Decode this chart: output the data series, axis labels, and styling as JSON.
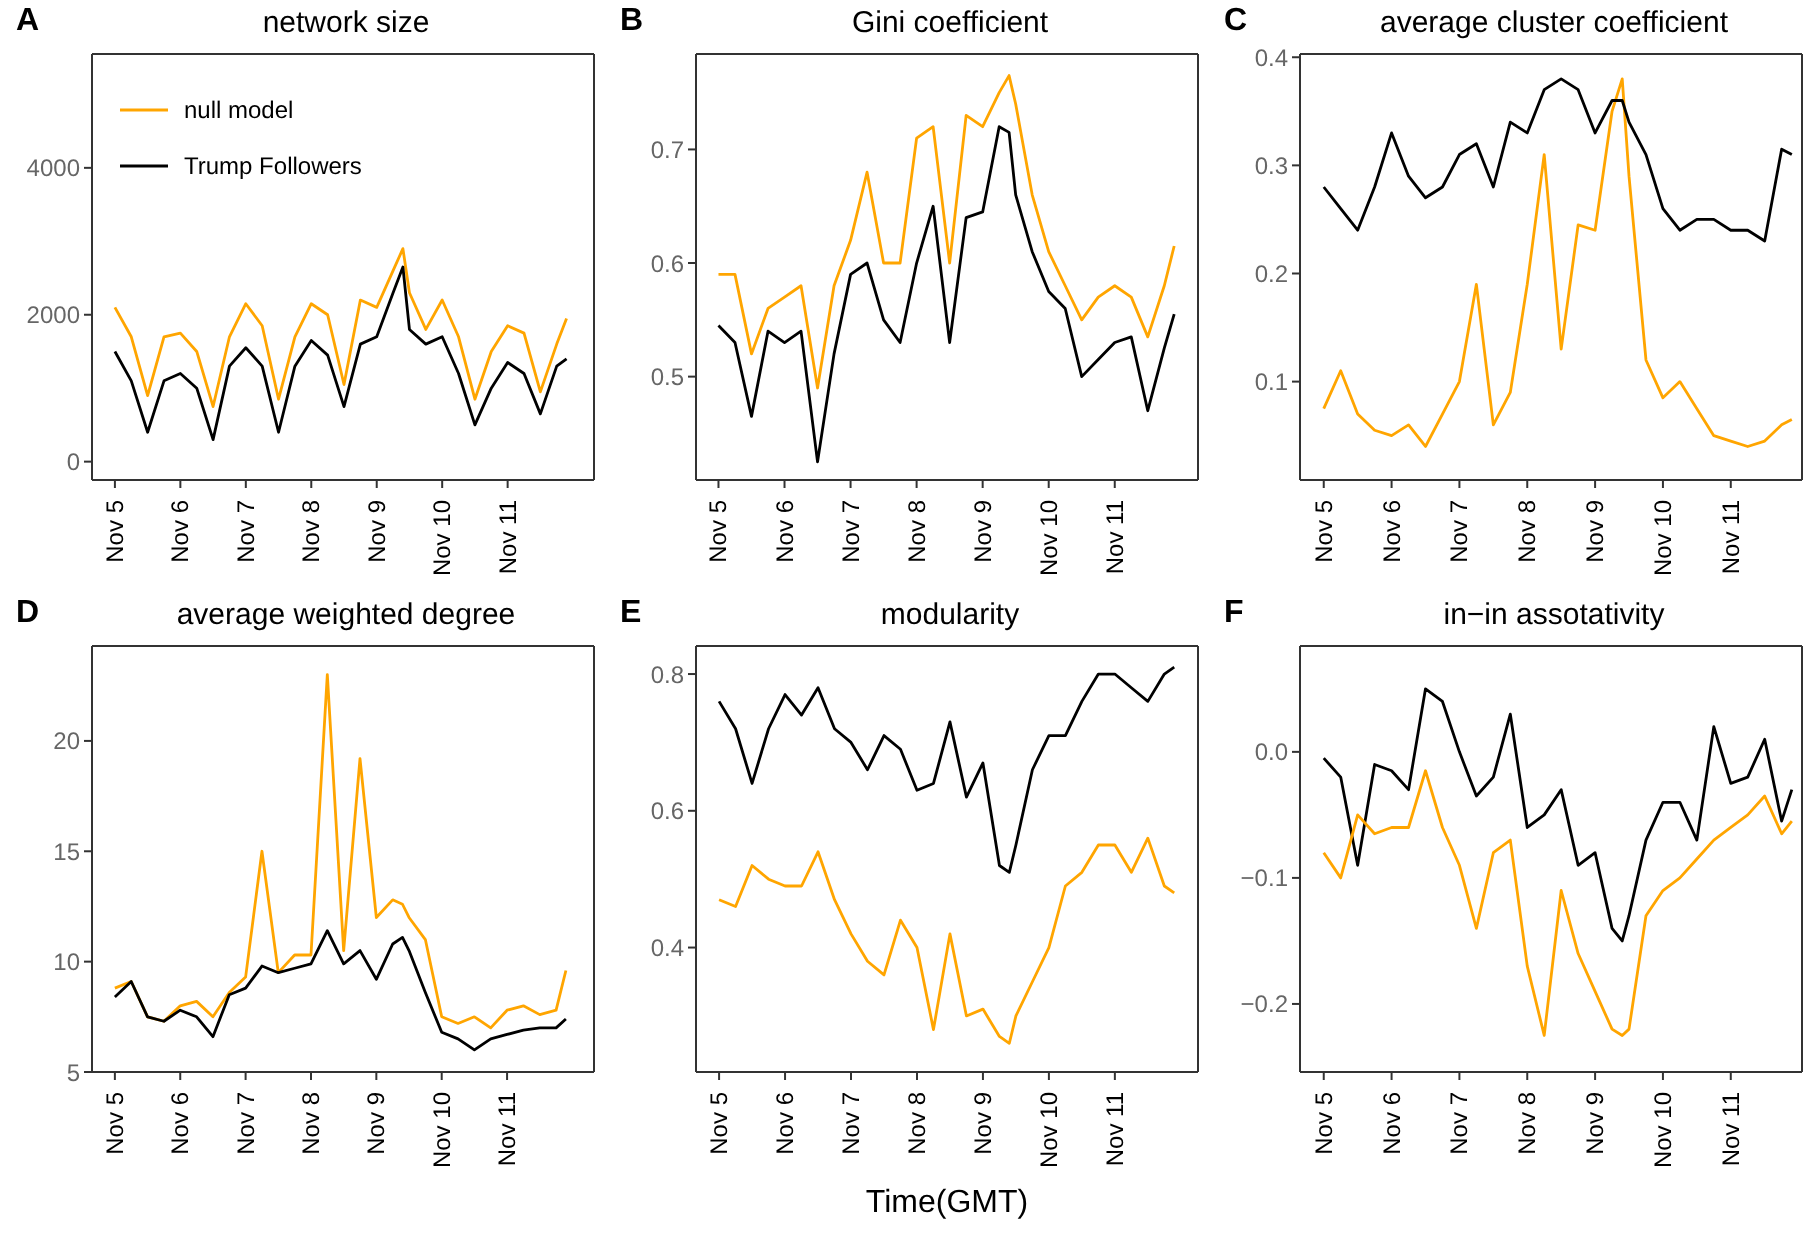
{
  "chart_data": [
    {
      "type": "line",
      "title": "network size",
      "annotations": [
        "A"
      ],
      "legend": "top left",
      "x": [
        "--11-05T00:00",
        "--11-05T06:00",
        "--11-05T12:00",
        "--11-05T18:00",
        "--11-06T00:00",
        "--11-06T06:00",
        "--11-06T12:00",
        "--11-06T18:00",
        "--11-07T00:00",
        "--11-07T06:00",
        "--11-07T12:00",
        "--11-07T18:00",
        "--11-08T00:00",
        "--11-08T06:00",
        "--11-08T12:00",
        "--11-08T18:00",
        "--11-09T00:00",
        "--11-09T06:00",
        "--11-09T09:36",
        "--11-09T12:00",
        "--11-09T18:00",
        "--11-10T00:00",
        "--11-10T06:00",
        "--11-10T12:00",
        "--11-10T18:00",
        "--11-11T00:00",
        "--11-11T06:00",
        "--11-11T12:00",
        "--11-11T18:00",
        "--11-11T21:36"
      ],
      "xlim": [
        "--11-04T15:36",
        "--11-12T07:40"
      ],
      "xticks": [
        {
          "value": "--11-05",
          "label": "Nov 5"
        },
        {
          "value": "--11-06",
          "label": "Nov 6"
        },
        {
          "value": "--11-07",
          "label": "Nov 7"
        },
        {
          "value": "--11-08",
          "label": "Nov 8"
        },
        {
          "value": "--11-09",
          "label": "Nov 9"
        },
        {
          "value": "--11-10",
          "label": "Nov 10"
        },
        {
          "value": "--11-11",
          "label": "Nov 11"
        }
      ],
      "ylim": [
        -250,
        5550
      ],
      "yticks": [
        0,
        2000,
        4000
      ],
      "series": [
        {
          "name": "null model",
          "color": "#ffa500",
          "values": [
            2100,
            1700,
            900,
            1700,
            1750,
            1500,
            750,
            1700,
            2150,
            1850,
            850,
            1700,
            2150,
            2000,
            1050,
            2200,
            2100,
            2600,
            2900,
            2300,
            1800,
            2200,
            1700,
            850,
            1500,
            1850,
            1750,
            950,
            1600,
            1950
          ]
        },
        {
          "name": "Trump Followers",
          "color": "#000000",
          "values": [
            1500,
            1100,
            400,
            1100,
            1200,
            1000,
            300,
            1300,
            1550,
            1300,
            400,
            1300,
            1650,
            1450,
            750,
            1600,
            1700,
            2300,
            2650,
            1800,
            1600,
            1700,
            1200,
            500,
            1000,
            1350,
            1200,
            650,
            1300,
            1400
          ]
        }
      ]
    },
    {
      "type": "line",
      "title": "Gini coefficient",
      "annotations": [
        "B"
      ],
      "x": [
        "--11-05T00:00",
        "--11-05T06:00",
        "--11-05T12:00",
        "--11-05T18:00",
        "--11-06T00:00",
        "--11-06T06:00",
        "--11-06T12:00",
        "--11-06T18:00",
        "--11-07T00:00",
        "--11-07T06:00",
        "--11-07T12:00",
        "--11-07T18:00",
        "--11-08T00:00",
        "--11-08T06:00",
        "--11-08T12:00",
        "--11-08T18:00",
        "--11-09T00:00",
        "--11-09T06:00",
        "--11-09T09:36",
        "--11-09T12:00",
        "--11-09T18:00",
        "--11-10T00:00",
        "--11-10T06:00",
        "--11-10T12:00",
        "--11-10T18:00",
        "--11-11T00:00",
        "--11-11T06:00",
        "--11-11T12:00",
        "--11-11T18:00",
        "--11-11T21:36"
      ],
      "xlim": [
        "--11-04T15:50",
        "--11-12T06:15"
      ],
      "xticks": [
        {
          "value": "--11-05",
          "label": "Nov 5"
        },
        {
          "value": "--11-06",
          "label": "Nov 6"
        },
        {
          "value": "--11-07",
          "label": "Nov 7"
        },
        {
          "value": "--11-08",
          "label": "Nov 8"
        },
        {
          "value": "--11-09",
          "label": "Nov 9"
        },
        {
          "value": "--11-10",
          "label": "Nov 10"
        },
        {
          "value": "--11-11",
          "label": "Nov 11"
        }
      ],
      "ylim": [
        0.409,
        0.784
      ],
      "yticks": [
        0.5,
        0.6,
        0.7
      ],
      "series": [
        {
          "color": "#ffa500",
          "values": [
            0.59,
            0.59,
            0.52,
            0.56,
            0.57,
            0.58,
            0.49,
            0.58,
            0.62,
            0.68,
            0.6,
            0.6,
            0.71,
            0.72,
            0.6,
            0.73,
            0.72,
            0.75,
            0.765,
            0.74,
            0.66,
            0.61,
            0.58,
            0.55,
            0.57,
            0.58,
            0.57,
            0.535,
            0.58,
            0.615
          ]
        },
        {
          "color": "#000000",
          "values": [
            0.545,
            0.53,
            0.465,
            0.54,
            0.53,
            0.54,
            0.425,
            0.52,
            0.59,
            0.6,
            0.55,
            0.53,
            0.6,
            0.65,
            0.53,
            0.64,
            0.645,
            0.72,
            0.715,
            0.66,
            0.61,
            0.575,
            0.56,
            0.5,
            0.515,
            0.53,
            0.535,
            0.47,
            0.525,
            0.555
          ]
        }
      ]
    },
    {
      "type": "line",
      "title": "average cluster coefficient",
      "annotations": [
        "C"
      ],
      "x": [
        "--11-05T00:00",
        "--11-05T06:00",
        "--11-05T12:00",
        "--11-05T18:00",
        "--11-06T00:00",
        "--11-06T06:00",
        "--11-06T12:00",
        "--11-06T18:00",
        "--11-07T00:00",
        "--11-07T06:00",
        "--11-07T12:00",
        "--11-07T18:00",
        "--11-08T00:00",
        "--11-08T06:00",
        "--11-08T12:00",
        "--11-08T18:00",
        "--11-09T00:00",
        "--11-09T06:00",
        "--11-09T09:36",
        "--11-09T12:00",
        "--11-09T18:00",
        "--11-10T00:00",
        "--11-10T06:00",
        "--11-10T12:00",
        "--11-10T18:00",
        "--11-11T00:00",
        "--11-11T06:00",
        "--11-11T12:00",
        "--11-11T18:00",
        "--11-11T21:36"
      ],
      "xlim": [
        "--11-04T15:36",
        "--11-12T01:12"
      ],
      "xticks": [
        {
          "value": "--11-05",
          "label": "Nov 5"
        },
        {
          "value": "--11-06",
          "label": "Nov 6"
        },
        {
          "value": "--11-07",
          "label": "Nov 7"
        },
        {
          "value": "--11-08",
          "label": "Nov 8"
        },
        {
          "value": "--11-09",
          "label": "Nov 9"
        },
        {
          "value": "--11-10",
          "label": "Nov 10"
        },
        {
          "value": "--11-11",
          "label": "Nov 11"
        }
      ],
      "ylim": [
        0.009,
        0.403
      ],
      "yticks": [
        0.1,
        0.2,
        0.3,
        0.4
      ],
      "series": [
        {
          "color": "#ffa500",
          "values": [
            0.075,
            0.11,
            0.07,
            0.055,
            0.05,
            0.06,
            0.04,
            0.07,
            0.1,
            0.19,
            0.06,
            0.09,
            0.19,
            0.31,
            0.13,
            0.245,
            0.24,
            0.35,
            0.38,
            0.29,
            0.12,
            0.085,
            0.1,
            0.075,
            0.05,
            0.045,
            0.04,
            0.045,
            0.06,
            0.065
          ]
        },
        {
          "color": "#000000",
          "values": [
            0.28,
            0.26,
            0.24,
            0.28,
            0.33,
            0.29,
            0.27,
            0.28,
            0.31,
            0.32,
            0.28,
            0.34,
            0.33,
            0.37,
            0.38,
            0.37,
            0.33,
            0.36,
            0.36,
            0.34,
            0.31,
            0.26,
            0.24,
            0.25,
            0.25,
            0.24,
            0.24,
            0.23,
            0.315,
            0.31
          ]
        }
      ]
    },
    {
      "type": "line",
      "title": "average weighted degree",
      "annotations": [
        "D"
      ],
      "x": [
        "--11-05T00:00",
        "--11-05T06:00",
        "--11-05T12:00",
        "--11-05T18:00",
        "--11-06T00:00",
        "--11-06T06:00",
        "--11-06T12:00",
        "--11-06T18:00",
        "--11-07T00:00",
        "--11-07T06:00",
        "--11-07T12:00",
        "--11-07T18:00",
        "--11-08T00:00",
        "--11-08T06:00",
        "--11-08T12:00",
        "--11-08T18:00",
        "--11-09T00:00",
        "--11-09T06:00",
        "--11-09T09:36",
        "--11-09T12:00",
        "--11-09T18:00",
        "--11-10T00:00",
        "--11-10T06:00",
        "--11-10T12:00",
        "--11-10T18:00",
        "--11-11T00:00",
        "--11-11T06:00",
        "--11-11T12:00",
        "--11-11T18:00",
        "--11-11T21:36"
      ],
      "xlim": [
        "--11-04T15:36",
        "--11-12T07:55"
      ],
      "xticks": [
        {
          "value": "--11-05",
          "label": "Nov 5"
        },
        {
          "value": "--11-06",
          "label": "Nov 6"
        },
        {
          "value": "--11-07",
          "label": "Nov 7"
        },
        {
          "value": "--11-08",
          "label": "Nov 8"
        },
        {
          "value": "--11-09",
          "label": "Nov 9"
        },
        {
          "value": "--11-10",
          "label": "Nov 10"
        },
        {
          "value": "--11-11",
          "label": "Nov 11"
        }
      ],
      "ylim": [
        5,
        24.3
      ],
      "yticks": [
        5,
        10,
        15,
        20
      ],
      "series": [
        {
          "color": "#ffa500",
          "values": [
            8.8,
            9.1,
            7.5,
            7.3,
            8.0,
            8.2,
            7.5,
            8.6,
            9.3,
            15,
            9.5,
            10.3,
            10.3,
            23,
            10.5,
            19.2,
            12,
            12.8,
            12.6,
            12,
            11,
            7.5,
            7.2,
            7.5,
            7,
            7.8,
            8,
            7.6,
            7.8,
            9.6
          ]
        },
        {
          "color": "#000000",
          "values": [
            8.4,
            9.1,
            7.5,
            7.3,
            7.8,
            7.5,
            6.6,
            8.5,
            8.8,
            9.8,
            9.5,
            9.7,
            9.9,
            11.4,
            9.9,
            10.5,
            9.2,
            10.8,
            11.1,
            10.5,
            8.6,
            6.8,
            6.5,
            6,
            6.5,
            6.7,
            6.9,
            7,
            7,
            7.4
          ]
        }
      ]
    },
    {
      "type": "line",
      "title": "modularity",
      "annotations": [
        "E"
      ],
      "xlabel": "Time(GMT)",
      "x": [
        "--11-05T00:00",
        "--11-05T06:00",
        "--11-05T12:00",
        "--11-05T18:00",
        "--11-06T00:00",
        "--11-06T06:00",
        "--11-06T12:00",
        "--11-06T18:00",
        "--11-07T00:00",
        "--11-07T06:00",
        "--11-07T12:00",
        "--11-07T18:00",
        "--11-08T00:00",
        "--11-08T06:00",
        "--11-08T12:00",
        "--11-08T18:00",
        "--11-09T00:00",
        "--11-09T06:00",
        "--11-09T09:36",
        "--11-09T12:00",
        "--11-09T18:00",
        "--11-10T00:00",
        "--11-10T06:00",
        "--11-10T12:00",
        "--11-10T18:00",
        "--11-11T00:00",
        "--11-11T06:00",
        "--11-11T12:00",
        "--11-11T18:00",
        "--11-11T21:36"
      ],
      "xlim": [
        "--11-04T15:36",
        "--11-12T06:15"
      ],
      "xticks": [
        {
          "value": "--11-05",
          "label": "Nov 5"
        },
        {
          "value": "--11-06",
          "label": "Nov 6"
        },
        {
          "value": "--11-07",
          "label": "Nov 7"
        },
        {
          "value": "--11-08",
          "label": "Nov 8"
        },
        {
          "value": "--11-09",
          "label": "Nov 9"
        },
        {
          "value": "--11-10",
          "label": "Nov 10"
        },
        {
          "value": "--11-11",
          "label": "Nov 11"
        }
      ],
      "ylim": [
        0.218,
        0.841
      ],
      "yticks": [
        0.4,
        0.6,
        0.8
      ],
      "series": [
        {
          "color": "#000000",
          "values": [
            0.76,
            0.72,
            0.64,
            0.72,
            0.77,
            0.74,
            0.78,
            0.72,
            0.7,
            0.66,
            0.71,
            0.69,
            0.63,
            0.64,
            0.73,
            0.62,
            0.67,
            0.52,
            0.51,
            0.55,
            0.66,
            0.71,
            0.71,
            0.76,
            0.8,
            0.8,
            0.78,
            0.76,
            0.8,
            0.81
          ]
        },
        {
          "color": "#ffa500",
          "values": [
            0.47,
            0.46,
            0.52,
            0.5,
            0.49,
            0.49,
            0.54,
            0.47,
            0.42,
            0.38,
            0.36,
            0.44,
            0.4,
            0.28,
            0.42,
            0.3,
            0.31,
            0.27,
            0.26,
            0.3,
            0.35,
            0.4,
            0.49,
            0.51,
            0.55,
            0.55,
            0.51,
            0.56,
            0.49,
            0.48
          ]
        }
      ]
    },
    {
      "type": "line",
      "title": "in−in assotativity",
      "annotations": [
        "F"
      ],
      "x": [
        "--11-05T00:00",
        "--11-05T06:00",
        "--11-05T12:00",
        "--11-05T18:00",
        "--11-06T00:00",
        "--11-06T06:00",
        "--11-06T12:00",
        "--11-06T18:00",
        "--11-07T00:00",
        "--11-07T06:00",
        "--11-07T12:00",
        "--11-07T18:00",
        "--11-08T00:00",
        "--11-08T06:00",
        "--11-08T12:00",
        "--11-08T18:00",
        "--11-09T00:00",
        "--11-09T06:00",
        "--11-09T09:36",
        "--11-09T12:00",
        "--11-09T18:00",
        "--11-10T00:00",
        "--11-10T06:00",
        "--11-10T12:00",
        "--11-10T18:00",
        "--11-11T00:00",
        "--11-11T06:00",
        "--11-11T12:00",
        "--11-11T18:00",
        "--11-11T21:36"
      ],
      "xlim": [
        "--11-04T15:36",
        "--11-12T01:12"
      ],
      "xticks": [
        {
          "value": "--11-05",
          "label": "Nov 5"
        },
        {
          "value": "--11-06",
          "label": "Nov 6"
        },
        {
          "value": "--11-07",
          "label": "Nov 7"
        },
        {
          "value": "--11-08",
          "label": "Nov 8"
        },
        {
          "value": "--11-09",
          "label": "Nov 9"
        },
        {
          "value": "--11-10",
          "label": "Nov 10"
        },
        {
          "value": "--11-11",
          "label": "Nov 11"
        }
      ],
      "ylim": [
        -0.254,
        0.084
      ],
      "yticks": [
        {
          "value": -0.2,
          "label": "−0.2"
        },
        {
          "value": -0.1,
          "label": "−0.1"
        },
        {
          "value": 0,
          "label": "0.0"
        }
      ],
      "series": [
        {
          "color": "#000000",
          "values": [
            -0.005,
            -0.02,
            -0.09,
            -0.01,
            -0.015,
            -0.03,
            0.05,
            0.04,
            0,
            -0.035,
            -0.02,
            0.03,
            -0.06,
            -0.05,
            -0.03,
            -0.09,
            -0.08,
            -0.14,
            -0.15,
            -0.13,
            -0.07,
            -0.04,
            -0.04,
            -0.07,
            0.02,
            -0.025,
            -0.02,
            0.01,
            -0.055,
            -0.03
          ]
        },
        {
          "color": "#ffa500",
          "values": [
            -0.08,
            -0.1,
            -0.05,
            -0.065,
            -0.06,
            -0.06,
            -0.015,
            -0.06,
            -0.09,
            -0.14,
            -0.08,
            -0.07,
            -0.17,
            -0.225,
            -0.11,
            -0.16,
            -0.19,
            -0.22,
            -0.225,
            -0.22,
            -0.13,
            -0.11,
            -0.1,
            -0.085,
            -0.07,
            -0.06,
            -0.05,
            -0.035,
            -0.065,
            -0.055
          ]
        }
      ]
    }
  ]
}
